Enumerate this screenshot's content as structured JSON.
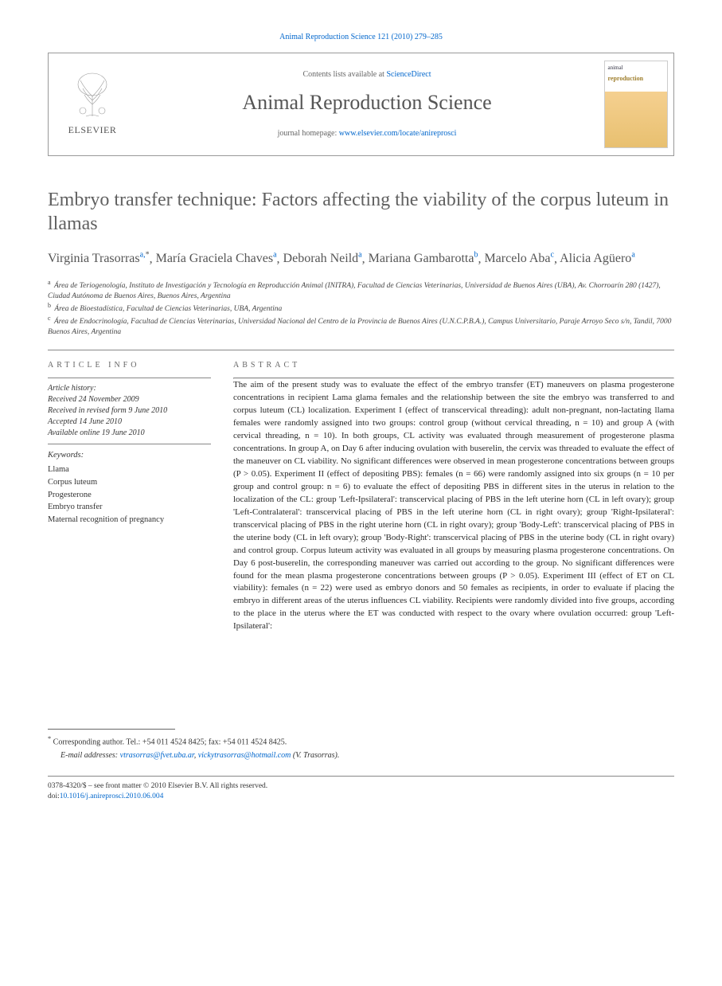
{
  "citation": {
    "prefix": "Animal Reproduction Science 121 (2010) 279–285",
    "journal_link_text": "Animal Reproduction Science"
  },
  "header": {
    "contents_prefix": "Contents lists available at ",
    "contents_link": "ScienceDirect",
    "journal_name": "Animal Reproduction Science",
    "homepage_prefix": "journal homepage: ",
    "homepage_url": "www.elsevier.com/locate/anireprosci",
    "publisher": "ELSEVIER",
    "cover_small_title": "animal",
    "cover_small_word": "reproduction"
  },
  "article": {
    "title": "Embryo transfer technique: Factors affecting the viability of the corpus luteum in llamas"
  },
  "authors": [
    {
      "name": "Virginia Trasorras",
      "affs": "a,",
      "star": "*"
    },
    {
      "name": "María Graciela Chaves",
      "affs": "a"
    },
    {
      "name": "Deborah Neild",
      "affs": "a"
    },
    {
      "name": "Mariana Gambarotta",
      "affs": "b"
    },
    {
      "name": "Marcelo Aba",
      "affs": "c"
    },
    {
      "name": "Alicia Agüero",
      "affs": "a"
    }
  ],
  "affiliations": [
    {
      "key": "a",
      "text": "Área de Teriogenología, Instituto de Investigación y Tecnología en Reproducción Animal (INITRA), Facultad de Ciencias Veterinarias, Universidad de Buenos Aires (UBA), Av. Chorroarín 280 (1427), Ciudad Autónoma de Buenos Aires, Buenos Aires, Argentina"
    },
    {
      "key": "b",
      "text": "Área de Bioestadística, Facultad de Ciencias Veterinarias, UBA, Argentina"
    },
    {
      "key": "c",
      "text": "Área de Endocrinología, Facultad de Ciencias Veterinarias, Universidad Nacional del Centro de la Provincia de Buenos Aires (U.N.C.P.B.A.), Campus Universitario, Paraje Arroyo Seco s/n, Tandil, 7000 Buenos Aires, Argentina"
    }
  ],
  "info": {
    "section_head": "ARTICLE INFO",
    "history_label": "Article history:",
    "history": [
      "Received 24 November 2009",
      "Received in revised form 9 June 2010",
      "Accepted 14 June 2010",
      "Available online 19 June 2010"
    ],
    "keywords_label": "Keywords:",
    "keywords": [
      "Llama",
      "Corpus luteum",
      "Progesterone",
      "Embryo transfer",
      "Maternal recognition of pregnancy"
    ]
  },
  "abstract": {
    "section_head": "ABSTRACT",
    "text": "The aim of the present study was to evaluate the effect of the embryo transfer (ET) maneuvers on plasma progesterone concentrations in recipient Lama glama females and the relationship between the site the embryo was transferred to and corpus luteum (CL) localization. Experiment I (effect of transcervical threading): adult non-pregnant, non-lactating llama females were randomly assigned into two groups: control group (without cervical threading, n = 10) and group A (with cervical threading, n = 10). In both groups, CL activity was evaluated through measurement of progesterone plasma concentrations. In group A, on Day 6 after inducing ovulation with buserelin, the cervix was threaded to evaluate the effect of the maneuver on CL viability. No significant differences were observed in mean progesterone concentrations between groups (P > 0.05). Experiment II (effect of depositing PBS): females (n = 66) were randomly assigned into six groups (n = 10 per group and control group: n = 6) to evaluate the effect of depositing PBS in different sites in the uterus in relation to the localization of the CL: group 'Left-Ipsilateral': transcervical placing of PBS in the left uterine horn (CL in left ovary); group 'Left-Contralateral': transcervical placing of PBS in the left uterine horn (CL in right ovary); group 'Right-Ipsilateral': transcervical placing of PBS in the right uterine horn (CL in right ovary); group 'Body-Left': transcervical placing of PBS in the uterine body (CL in left ovary); group 'Body-Right': transcervical placing of PBS in the uterine body (CL in right ovary) and control group. Corpus luteum activity was evaluated in all groups by measuring plasma progesterone concentrations. On Day 6 post-buserelin, the corresponding maneuver was carried out according to the group. No significant differences were found for the mean plasma progesterone concentrations between groups (P > 0.05). Experiment III (effect of ET on CL viability): females (n = 22) were used as embryo donors and 50 females as recipients, in order to evaluate if placing the embryo in different areas of the uterus influences CL viability. Recipients were randomly divided into five groups, according to the place in the uterus where the ET was conducted with respect to the ovary where ovulation occurred: group 'Left-Ipsilateral':"
  },
  "footer": {
    "corresponding_label": "Corresponding author. Tel.: +54 011 4524 8425; fax: +54 011 4524 8425.",
    "email_label": "E-mail addresses:",
    "emails": [
      {
        "addr": "vtrasorras@fvet.uba.ar",
        "suffix": ", "
      },
      {
        "addr": "vickytrasorras@hotmail.com",
        "suffix": " (V. Trasorras)."
      }
    ],
    "issn_line": "0378-4320/$ – see front matter © 2010 Elsevier B.V. All rights reserved.",
    "doi_prefix": "doi:",
    "doi": "10.1016/j.anireprosci.2010.06.004"
  },
  "colors": {
    "link": "#0066cc",
    "text": "#2a2a2a",
    "muted": "#606060",
    "border": "#888888"
  }
}
